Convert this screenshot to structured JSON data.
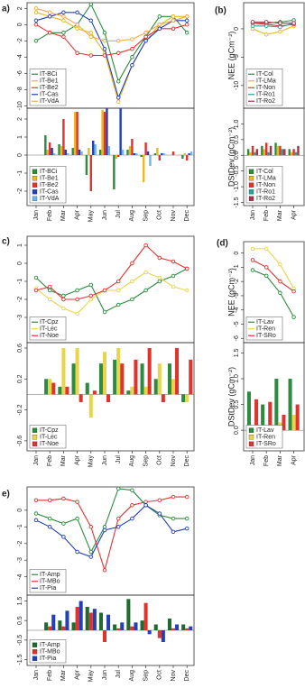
{
  "chart_data": [
    {
      "type": "line",
      "panel_label": "a)",
      "categories": [
        "Jan",
        "Feb",
        "Mar",
        "Apr",
        "May",
        "Jun",
        "Jul",
        "Aug",
        "Sep",
        "Oct",
        "Nov",
        "Dec"
      ],
      "ylim": [
        -10.3,
        2.7
      ],
      "yticks": [
        2,
        0,
        -2,
        -4,
        -6,
        -8,
        -10
      ],
      "legend": "bottom-left",
      "series": [
        {
          "name": "IT-BCi",
          "color": "#2d8a3e",
          "values": [
            -2,
            -1,
            -1,
            0,
            2.5,
            -1,
            -7,
            -4,
            -1.5,
            1,
            1,
            -1
          ]
        },
        {
          "name": "IT-Be1",
          "color": "#e8b923",
          "values": [
            1.5,
            1,
            0.5,
            -0.5,
            -1,
            -3.5,
            -9.5,
            -5,
            -2,
            0,
            1,
            1
          ]
        },
        {
          "name": "IT-Be2",
          "color": "#e0332e",
          "values": [
            0,
            -1,
            -1.5,
            -3.5,
            -3.8,
            -3.8,
            -3.5,
            -3,
            -1.5,
            -0.5,
            -0.5,
            0
          ]
        },
        {
          "name": "IT-Cas",
          "color": "#2440b8",
          "values": [
            0.5,
            1,
            1.5,
            1.5,
            0.5,
            -3,
            -9,
            -5,
            -2,
            -0.5,
            0.5,
            0.5
          ]
        },
        {
          "name": "IT-VdA",
          "color": "#f3a64a",
          "values": [
            2,
            1.5,
            1,
            0,
            -1.5,
            -2,
            -2,
            -1.8,
            -1,
            0,
            0.5,
            1
          ]
        }
      ]
    },
    {
      "type": "bar",
      "categories": [
        "Jan",
        "Feb",
        "Mar",
        "Apr",
        "May",
        "Jun",
        "Jul",
        "Aug",
        "Sep",
        "Oct",
        "Nov",
        "Dec"
      ],
      "ylim": [
        -2.8,
        2.6
      ],
      "yticks": [
        2,
        1,
        0,
        -1,
        -2
      ],
      "legend": "bottom-left",
      "series": [
        {
          "name": "IT-BCi",
          "color": "#2d8a3e",
          "values": [
            0,
            1.1,
            0.6,
            0.4,
            -1.1,
            0.3,
            -1.9,
            0.3,
            -0.1,
            0.1,
            0,
            -0.2
          ]
        },
        {
          "name": "IT-Be1",
          "color": "#e8b923",
          "values": [
            0,
            0.3,
            0.5,
            2.4,
            0.4,
            2.5,
            -0.2,
            0.5,
            -1.5,
            0.4,
            0,
            0.1
          ]
        },
        {
          "name": "IT-Be2",
          "color": "#e0332e",
          "values": [
            0,
            0.7,
            2,
            2.4,
            -2,
            2.4,
            -0.1,
            0.9,
            0.7,
            -0.3,
            0.2,
            -0.3
          ]
        },
        {
          "name": "IT-Cas",
          "color": "#2440b8",
          "values": [
            0,
            0.4,
            0.3,
            0.3,
            0.8,
            2.6,
            2.6,
            0.1,
            0.2,
            0.1,
            0,
            0.1
          ]
        },
        {
          "name": "IT-VdA",
          "color": "#6fb7e6",
          "values": [
            0,
            0.1,
            0.1,
            0.2,
            0.6,
            0.5,
            0.3,
            0.1,
            -0.6,
            0.1,
            0,
            0.2
          ]
        }
      ]
    },
    {
      "type": "line",
      "panel_label": "(b)",
      "y_label": "NEE (gCm⁻²)",
      "categories": [
        "Jan",
        "Feb",
        "Mar",
        "Apr"
      ],
      "ylim": [
        -14,
        4.6
      ],
      "yticks": [
        0,
        -5,
        -10
      ],
      "legend": "bottom-left",
      "series": [
        {
          "name": "IT-Col",
          "color": "#2d8a3e",
          "values": [
            1,
            1,
            1.2,
            1.5
          ]
        },
        {
          "name": "IT-LMa",
          "color": "#e8b923",
          "values": [
            0,
            -1,
            -0.5,
            0.5
          ]
        },
        {
          "name": "IT-Non",
          "color": "#e0332e",
          "values": [
            1,
            0.8,
            0.5,
            0.8
          ]
        },
        {
          "name": "IT-Ro1",
          "color": "#2aa198",
          "values": [
            0.5,
            0.5,
            0.3,
            1
          ]
        },
        {
          "name": "IT-Ro2",
          "color": "#a8324a",
          "values": [
            1.2,
            1.2,
            1,
            1
          ]
        }
      ]
    },
    {
      "type": "bar",
      "y_label": "DStDev (gCm⁻²)",
      "categories": [
        "Jan",
        "Feb",
        "Mar",
        "Apr"
      ],
      "ylim": [
        -1.6,
        1.5
      ],
      "yticks": [
        {
          "value": 1,
          "label": "1.0"
        },
        0.5,
        {
          "value": 0,
          "label": "0.0"
        },
        -0.5,
        {
          "value": -1,
          "label": "-1.0"
        },
        -1.5
      ],
      "legend": "bottom-left",
      "series": [
        {
          "name": "IT-Col",
          "color": "#2d8a3e",
          "values": [
            0.2,
            0.3,
            0.4,
            0.2
          ]
        },
        {
          "name": "IT-LMa",
          "color": "#e8b923",
          "values": [
            0.1,
            0.2,
            0.3,
            0.1
          ]
        },
        {
          "name": "IT-Non",
          "color": "#e0332e",
          "values": [
            0.3,
            0.4,
            0.3,
            0.2
          ]
        },
        {
          "name": "IT-Ro1",
          "color": "#2aa198",
          "values": [
            0.1,
            0.1,
            0.2,
            0.1
          ]
        },
        {
          "name": "IT-Ro2",
          "color": "#a8324a",
          "values": [
            0.2,
            0.3,
            0.2,
            0.3
          ]
        }
      ]
    },
    {
      "type": "line",
      "panel_label": "c)",
      "categories": [
        "Jan",
        "Feb",
        "Mar",
        "Apr",
        "May",
        "Jun",
        "Jul",
        "Aug",
        "Sep",
        "Oct",
        "Nov",
        "Dec"
      ],
      "ylim": [
        -4.4,
        1.5
      ],
      "yticks": [
        1,
        0,
        -1,
        -2,
        -3
      ],
      "legend": "bottom-left",
      "series": [
        {
          "name": "IT-Cpz",
          "color": "#2d8a3e",
          "values": [
            -0.8,
            -1.5,
            -1.8,
            -1.5,
            -1.2,
            -2.7,
            -2.3,
            -2,
            -1.5,
            -1,
            -0.7,
            -0.3
          ]
        },
        {
          "name": "IT-Lec",
          "color": "#e8d44d",
          "values": [
            -1.4,
            -2,
            -2.5,
            -2.8,
            -2,
            -1.5,
            -1.5,
            -1,
            -0.5,
            -0.8,
            -1.3,
            -1.5
          ]
        },
        {
          "name": "IT-Noe",
          "color": "#e0332e",
          "values": [
            -1.5,
            -1.3,
            -2,
            -2,
            -1.8,
            -1.5,
            -1,
            0,
            1,
            0.3,
            0.1,
            -0.3
          ]
        }
      ]
    },
    {
      "type": "bar",
      "categories": [
        "Jan",
        "Feb",
        "Mar",
        "Apr",
        "May",
        "Jun",
        "Jul",
        "Aug",
        "Sep",
        "Oct",
        "Nov",
        "Dec"
      ],
      "ylim": [
        -0.73,
        0.67
      ],
      "yticks": [
        0.6,
        0.2,
        -0.2,
        -0.6
      ],
      "legend": "bottom-left",
      "series": [
        {
          "name": "IT-Cpz",
          "color": "#2d8a3e",
          "values": [
            0,
            0.2,
            0.1,
            0.4,
            0.15,
            0.4,
            0.45,
            0.05,
            0.4,
            0.2,
            0.4,
            -0.1
          ]
        },
        {
          "name": "IT-Lec",
          "color": "#e8d44d",
          "values": [
            0,
            0.2,
            0.6,
            0.6,
            -0.3,
            0.55,
            0.6,
            0.1,
            0.1,
            0.4,
            0.2,
            -0.1
          ]
        },
        {
          "name": "IT-Noe",
          "color": "#e0332e",
          "values": [
            0,
            0.15,
            0.1,
            -0.1,
            0.05,
            -0.1,
            0.4,
            0.45,
            0.6,
            -0.1,
            0.6,
            0.45
          ]
        }
      ]
    },
    {
      "type": "line",
      "panel_label": "(d)",
      "y_label": "NEE (gCm⁻²)",
      "categories": [
        "Jan",
        "Feb",
        "Mar",
        "Apr"
      ],
      "ylim": [
        -6.3,
        0.8
      ],
      "yticks": [
        0,
        -1,
        -2,
        -3,
        -4,
        -5,
        -6
      ],
      "legend": "bottom-left",
      "series": [
        {
          "name": "IT-Lav",
          "color": "#2d8a3e",
          "values": [
            -1.2,
            -1.6,
            -2.8,
            -4.5
          ]
        },
        {
          "name": "IT-Ren",
          "color": "#e8d44d",
          "values": [
            0.3,
            0.3,
            -0.8,
            -2.5
          ]
        },
        {
          "name": "IT-SRo",
          "color": "#e0332e",
          "values": [
            -0.5,
            -1,
            -2,
            -2.7
          ]
        }
      ]
    },
    {
      "type": "bar",
      "y_label": "DStDev (gCm⁻²)",
      "categories": [
        "Jan",
        "Feb",
        "Mar",
        "Apr"
      ],
      "ylim": [
        -0.4,
        1.7
      ],
      "yticks": [
        1.5,
        {
          "value": 1,
          "label": "1.0"
        },
        0.5,
        {
          "value": 0,
          "label": "0.0"
        }
      ],
      "legend": "bottom-left",
      "series": [
        {
          "name": "IT-Lav",
          "color": "#2d8a3e",
          "values": [
            0.75,
            0.5,
            1,
            1
          ]
        },
        {
          "name": "IT-Ren",
          "color": "#e8d44d",
          "values": [
            0,
            0.1,
            0.15,
            0.3
          ]
        },
        {
          "name": "IT-SRo",
          "color": "#e0332e",
          "values": [
            0.6,
            0.55,
            0.3,
            0.5
          ]
        }
      ]
    },
    {
      "type": "line",
      "panel_label": "e)",
      "categories": [
        "Jan",
        "Feb",
        "Mar",
        "Apr",
        "May",
        "Jun",
        "Jul",
        "Aug",
        "Sep",
        "Oct",
        "Nov",
        "Dec"
      ],
      "ylim": [
        -5.1,
        1.4
      ],
      "yticks": [
        0,
        -1,
        -2,
        -3,
        -4
      ],
      "legend": "bottom-left",
      "series": [
        {
          "name": "IT-Amp",
          "color": "#2d8a3e",
          "values": [
            -0.2,
            -0.5,
            -0.8,
            -0.5,
            -2.5,
            -1,
            1.3,
            1.2,
            0.3,
            -0.3,
            -0.5,
            -0.5
          ]
        },
        {
          "name": "IT-MBo",
          "color": "#e0332e",
          "values": [
            0.6,
            0.6,
            0.7,
            0.5,
            -1,
            -3.6,
            -0.5,
            0.3,
            0.5,
            0.6,
            0.8,
            0.8
          ]
        },
        {
          "name": "IT-Pia",
          "color": "#2440b8",
          "values": [
            -0.6,
            -1,
            -1.6,
            -2.5,
            -2.8,
            -1.2,
            -1,
            -0.5,
            0.3,
            -0.2,
            -1.3,
            -1.1
          ]
        }
      ]
    },
    {
      "type": "bar",
      "categories": [
        "Jan",
        "Feb",
        "Mar",
        "Apr",
        "May",
        "Jun",
        "Jul",
        "Aug",
        "Sep",
        "Oct",
        "Nov",
        "Dec"
      ],
      "ylim": [
        -1.8,
        1.8
      ],
      "yticks": [
        1.5,
        0.5,
        -0.5,
        -1.5
      ],
      "legend": "bottom-left",
      "series": [
        {
          "name": "IT-Amp",
          "color": "#1f6b2e",
          "values": [
            0,
            0.4,
            0.5,
            0.4,
            1.2,
            0.9,
            0.3,
            1.6,
            0.5,
            0.3,
            0.6,
            0.3
          ]
        },
        {
          "name": "IT-MBo",
          "color": "#e0332e",
          "values": [
            0,
            0.2,
            0.2,
            1.2,
            0.9,
            -0.6,
            0.1,
            0.2,
            1.4,
            -0.4,
            0.1,
            0.1
          ]
        },
        {
          "name": "IT-Pia",
          "color": "#2440b8",
          "values": [
            0,
            0.8,
            1,
            1.5,
            1.1,
            0.8,
            0.4,
            0.4,
            -0.2,
            -0.6,
            0.3,
            0.2
          ]
        }
      ]
    }
  ]
}
